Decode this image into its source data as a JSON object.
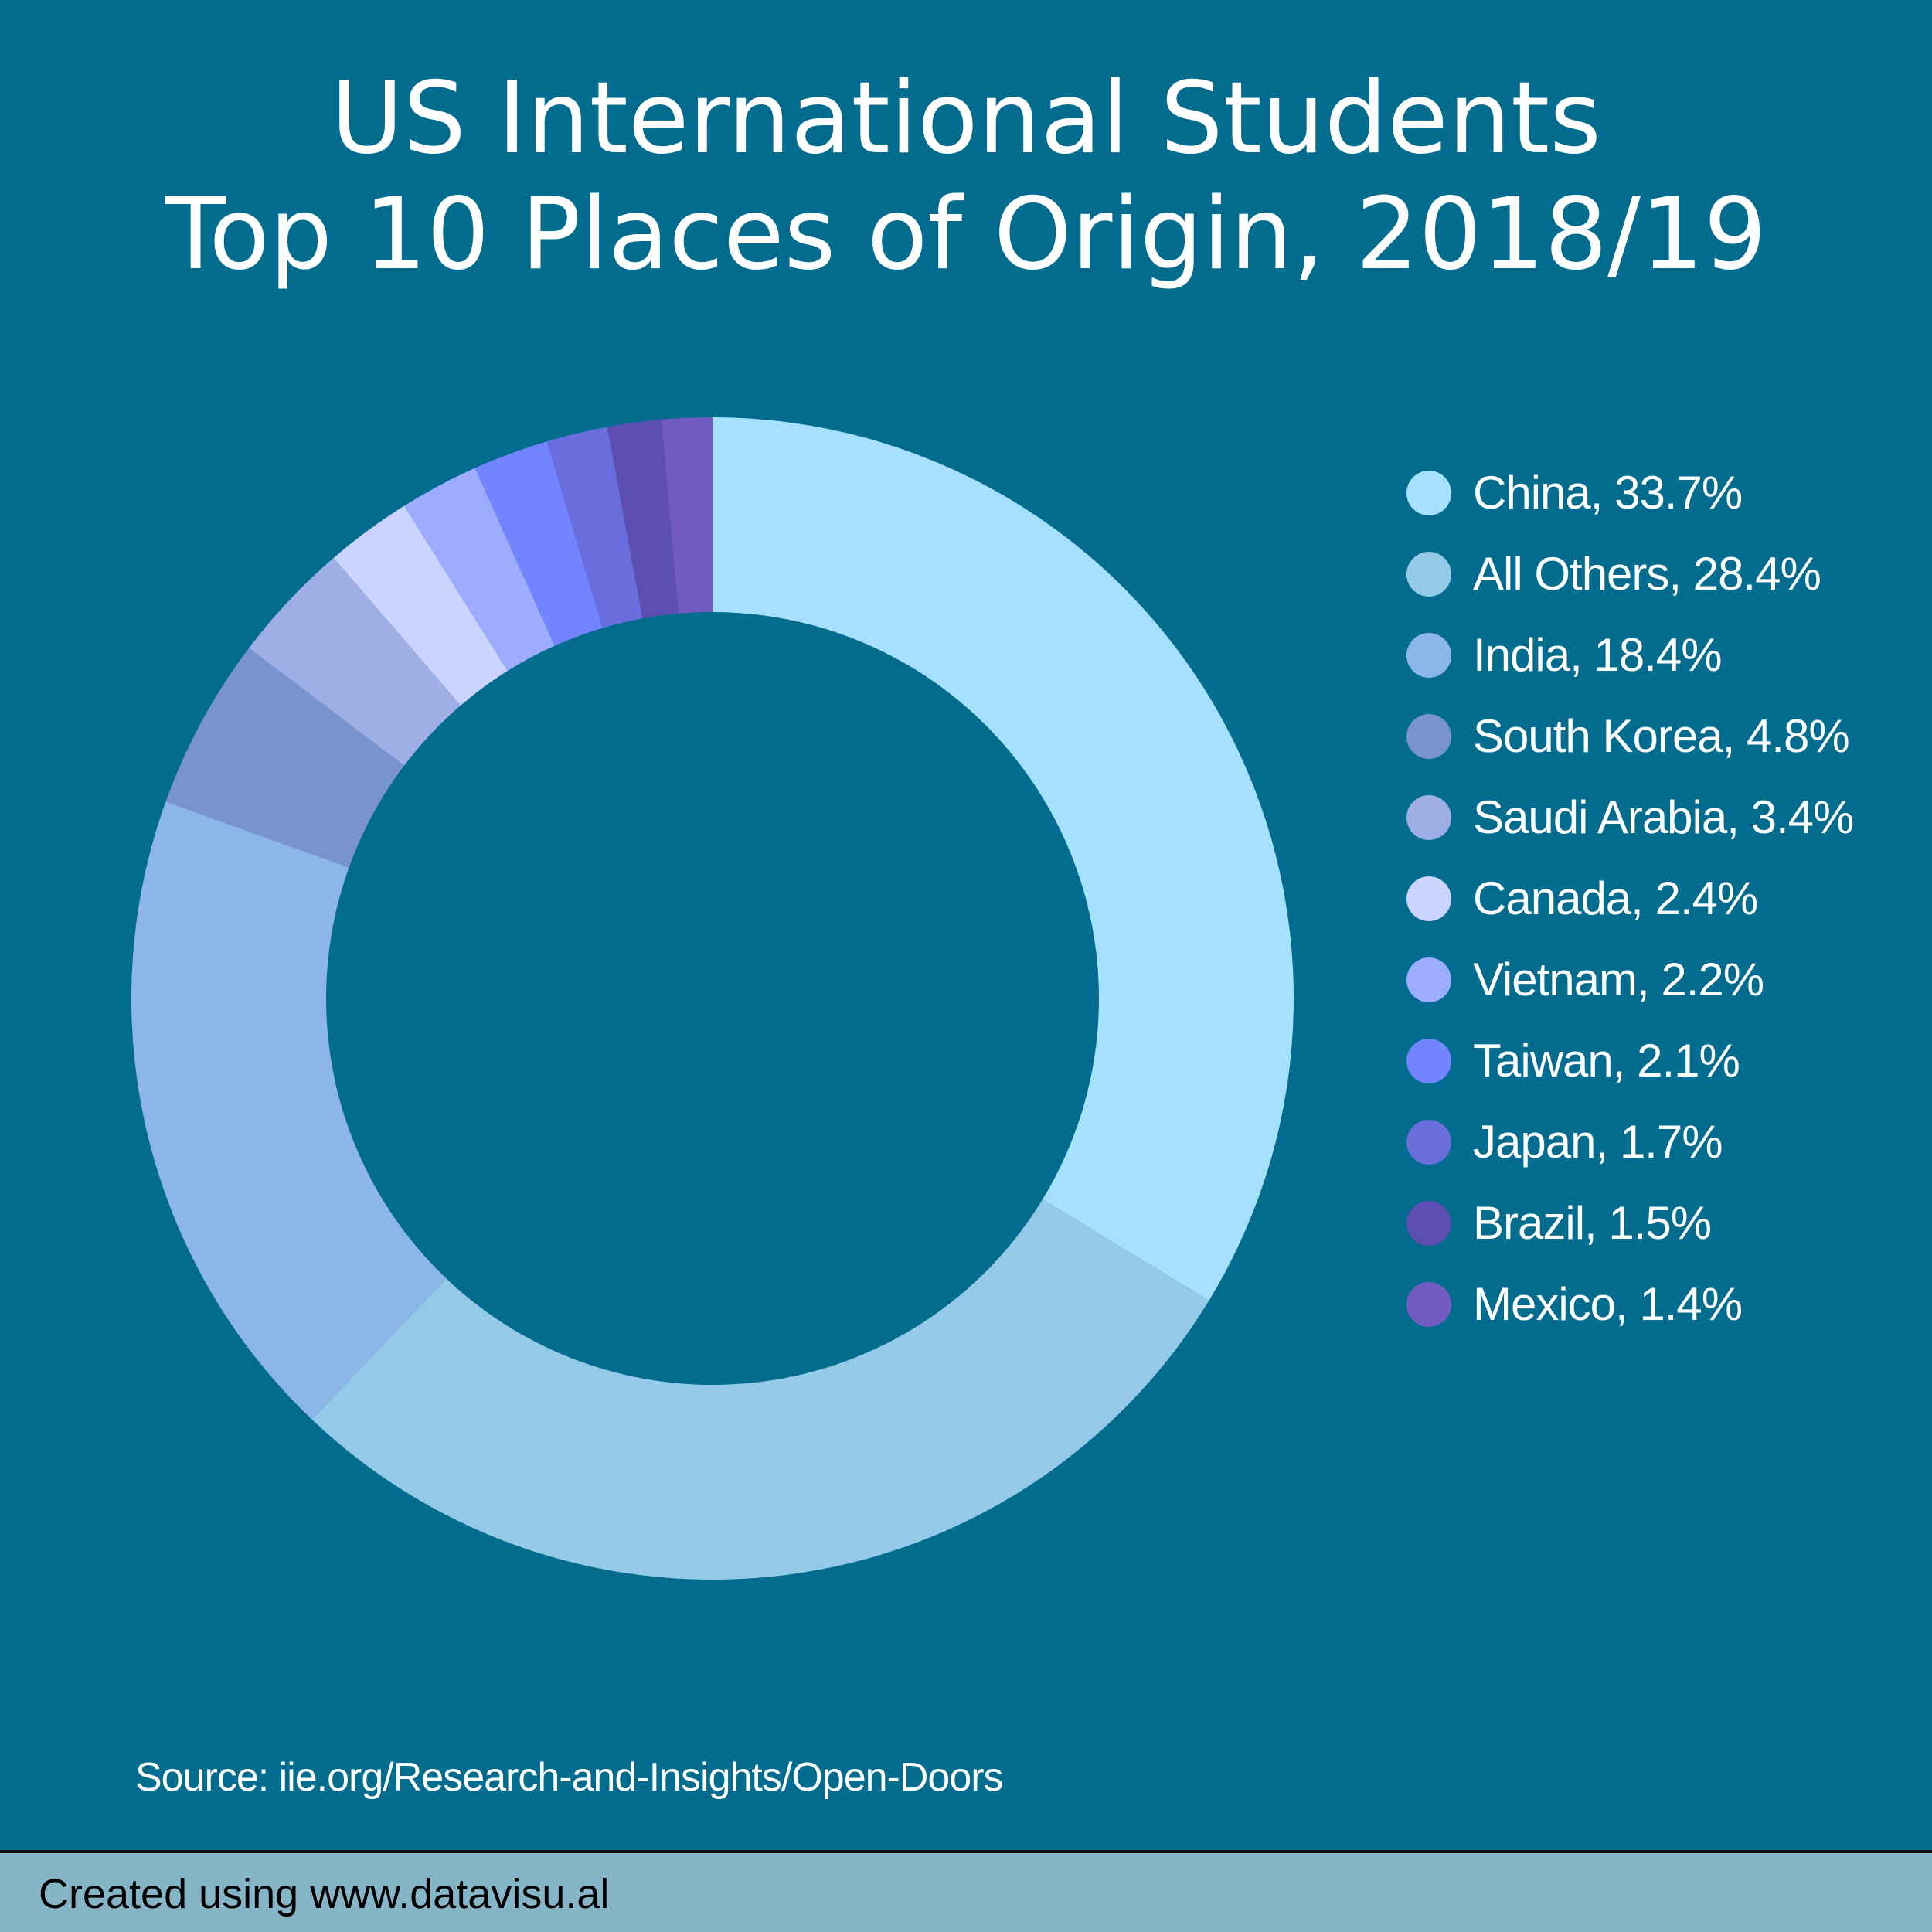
{
  "title_lines": [
    "US International Students",
    "Top 10 Places of Origin, 2018/19"
  ],
  "source": "Source: iie.org/Research-and-Insights/Open-Doors",
  "footer": "Created using www.datavisu.al",
  "colors": {
    "background": "#016c8e",
    "footer_background": "#86b5c8"
  },
  "chart_data": {
    "type": "pie",
    "donut": true,
    "title": "US International Students Top 10 Places of Origin, 2018/19",
    "legend_position": "right",
    "categories": [
      "China",
      "All Others",
      "India",
      "South Korea",
      "Saudi Arabia",
      "Canada",
      "Vietnam",
      "Taiwan",
      "Japan",
      "Brazil",
      "Mexico"
    ],
    "values": [
      33.7,
      28.4,
      18.4,
      4.8,
      3.4,
      2.4,
      2.2,
      2.1,
      1.7,
      1.5,
      1.4
    ],
    "legend_labels": [
      "China, 33.7%",
      "All Others, 28.4%",
      "India, 18.4%",
      "South Korea, 4.8%",
      "Saudi Arabia, 3.4%",
      "Canada, 2.4%",
      "Vietnam, 2.2%",
      "Taiwan, 2.1%",
      "Japan, 1.7%",
      "Brazil, 1.5%",
      "Mexico, 1.4%"
    ],
    "colors": [
      "#a6e0ff",
      "#94c9e8",
      "#8cb6e8",
      "#7893cf",
      "#9fafe6",
      "#cbd4ff",
      "#9eacff",
      "#7284ff",
      "#6a6edc",
      "#5c4fb1",
      "#735cc0"
    ]
  }
}
